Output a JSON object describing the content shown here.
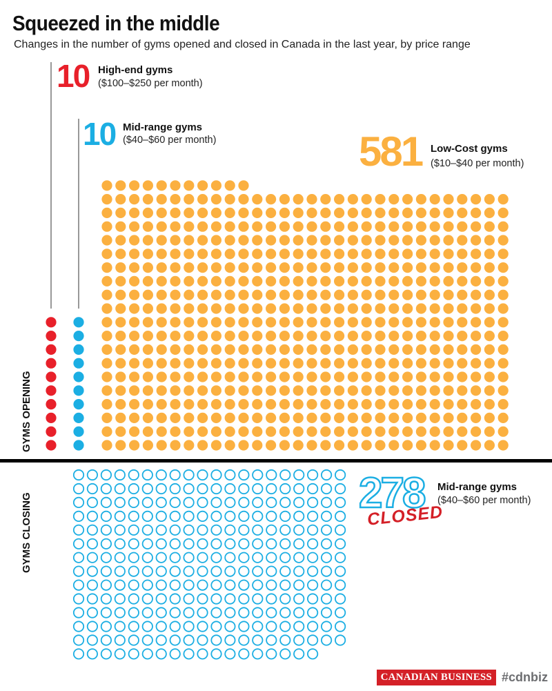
{
  "title": "Squeezed in the middle",
  "subtitle": "Changes in the number of gyms opened and closed in Canada in the last year, by price range",
  "colors": {
    "high_end": "#e8202a",
    "mid_range": "#1baee3",
    "low_cost": "#fbb040",
    "text": "#111111",
    "stamp": "#d42027"
  },
  "chart_data": {
    "type": "unit-chart",
    "sections": {
      "opening": "GYMS OPENING",
      "closing": "GYMS CLOSING"
    },
    "series": [
      {
        "group": "opening",
        "count": "10",
        "value": 10,
        "name": "High-end gyms",
        "range": "($100–$250 per month)",
        "color_key": "high_end",
        "style": "filled"
      },
      {
        "group": "opening",
        "count": "10",
        "value": 10,
        "name": "Mid-range gyms",
        "range": "($40–$60 per month)",
        "color_key": "mid_range",
        "style": "filled"
      },
      {
        "group": "opening",
        "count": "581",
        "value": 581,
        "name": "Low-Cost gyms",
        "range": "($10–$40 per month)",
        "color_key": "low_cost",
        "style": "filled"
      },
      {
        "group": "closing",
        "count": "278",
        "value": 278,
        "name": "Mid-range gyms",
        "range": "($40–$60 per month)",
        "color_key": "mid_range",
        "style": "outline",
        "stamp": "CLOSED"
      }
    ]
  },
  "footer": {
    "logo": "CANADIAN BUSINESS",
    "hashtag": "#cdnbiz"
  }
}
